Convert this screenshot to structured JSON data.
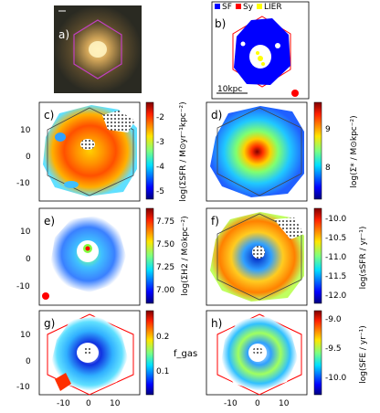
{
  "figure": {
    "panels": [
      {
        "id": "a",
        "label": "a)"
      },
      {
        "id": "b",
        "label": "b)"
      },
      {
        "id": "c",
        "label": "c)"
      },
      {
        "id": "d",
        "label": "d)"
      },
      {
        "id": "e",
        "label": "e)"
      },
      {
        "id": "f",
        "label": "f)"
      },
      {
        "id": "g",
        "label": "g)"
      },
      {
        "id": "h",
        "label": "h)"
      }
    ],
    "legend": [
      {
        "label": "SF",
        "color": "#0000ff"
      },
      {
        "label": "Sy",
        "color": "#ff0000"
      },
      {
        "label": "LIER",
        "color": "#ffff00"
      }
    ],
    "scalebar_label": "10kpc",
    "colorbars": {
      "c": {
        "ticks": [
          "-2",
          "-3",
          "-4",
          "-5"
        ],
        "label": "log(ΣSFR / M⊙yr⁻¹kpc⁻²)"
      },
      "d": {
        "ticks": [
          "9",
          "8"
        ],
        "label": "log(Σ* / M⊙kpc⁻²)"
      },
      "e": {
        "ticks": [
          "7.75",
          "7.50",
          "7.25",
          "7.00"
        ],
        "label": "log(ΣH2 / M⊙kpc⁻²)"
      },
      "f": {
        "ticks": [
          "-10.0",
          "-10.5",
          "-11.0",
          "-11.5",
          "-12.0"
        ],
        "label": "log(sSFR / yr⁻¹)"
      },
      "g": {
        "ticks": [
          "0.2",
          "0.1"
        ],
        "label": "f_gas"
      },
      "h": {
        "ticks": [
          "-9.0",
          "-9.5",
          "-10.0"
        ],
        "label": "log(SFE / yr⁻¹)"
      }
    },
    "axis_ticks": {
      "y": [
        "10",
        "0",
        "-10"
      ],
      "x": [
        "-10",
        "0",
        "10"
      ]
    }
  }
}
